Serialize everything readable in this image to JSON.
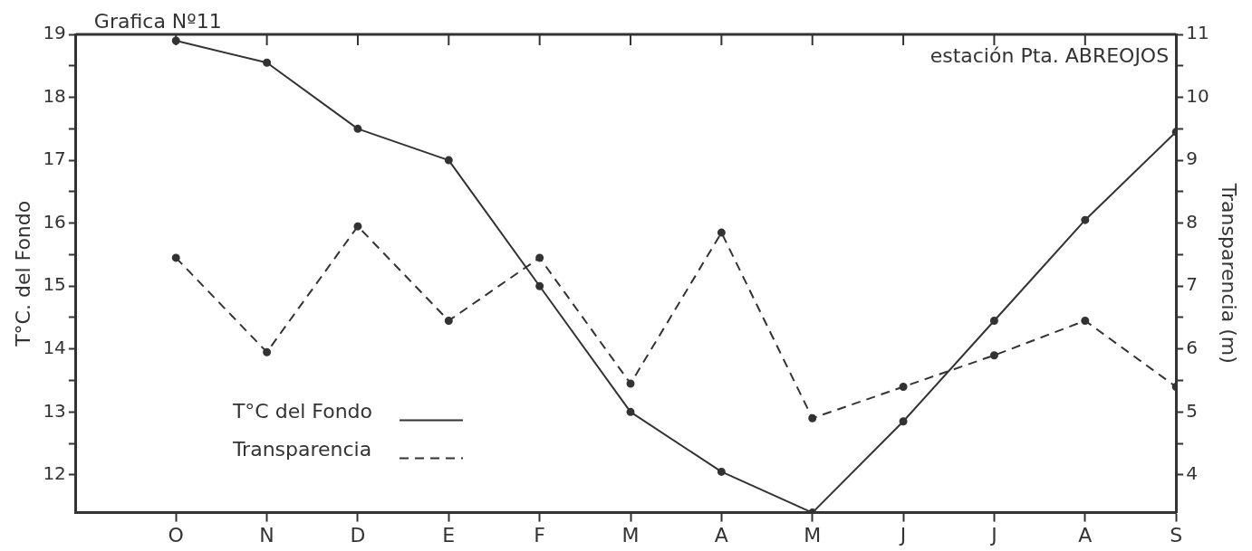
{
  "chart_data": {
    "type": "line",
    "title": "Grafica Nº11",
    "ylabel": "T°C. del Fondo",
    "y2label": "Transparencia (m)",
    "annotations": [
      "estación Pta. ABREOJOS"
    ],
    "categories": [
      "O",
      "N",
      "D",
      "E",
      "F",
      "M",
      "A",
      "M",
      "J",
      "J",
      "A",
      "S"
    ],
    "series": [
      {
        "name": "T°C del Fondo",
        "color": "#333333",
        "line_style": "solid",
        "values": [
          18.9,
          18.55,
          17.5,
          17.0,
          15.0,
          13.0,
          12.05,
          11.4,
          12.85,
          14.45,
          16.05,
          17.45
        ]
      },
      {
        "name": "Transparencia",
        "color": "#333333",
        "line_style": "dashed",
        "axis": "y2",
        "values": [
          7.45,
          5.95,
          7.95,
          6.45,
          7.45,
          5.45,
          7.85,
          4.9,
          5.4,
          5.9,
          6.45,
          5.4
        ]
      }
    ],
    "ylim": [
      11.4,
      19
    ],
    "yticks": [
      12,
      {
        "value": 12.5,
        "label": null
      },
      13,
      {
        "value": 13.5,
        "label": null
      },
      14,
      {
        "value": 14.5,
        "label": null
      },
      15,
      {
        "value": 15.5,
        "label": null
      },
      16,
      {
        "value": 16.5,
        "label": null
      },
      17,
      {
        "value": 17.5,
        "label": null
      },
      18,
      {
        "value": 18.5,
        "label": null
      },
      19
    ],
    "y2lim": [
      3.4,
      11
    ],
    "y2ticks": [
      4,
      {
        "value": 4.5,
        "label": null
      },
      5,
      {
        "value": 5.5,
        "label": null
      },
      6,
      {
        "value": 6.5,
        "label": null
      },
      7,
      {
        "value": 7.5,
        "label": null
      },
      8,
      {
        "value": 8.5,
        "label": null
      },
      9,
      {
        "value": 9.5,
        "label": null
      },
      10,
      {
        "value": 10.5,
        "label": null
      },
      11
    ],
    "marker": "circle",
    "grid": false,
    "legend": "bottom left"
  }
}
